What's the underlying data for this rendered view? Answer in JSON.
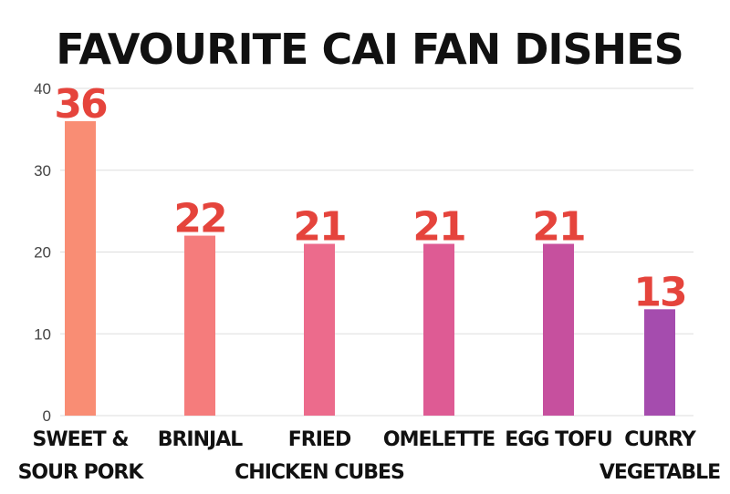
{
  "chart_data": {
    "type": "bar",
    "title": "FAVOURITE CAI FAN DISHES",
    "xlabel": "",
    "ylabel": "",
    "categories": [
      [
        "SWEET &",
        "SOUR PORK"
      ],
      [
        "BRINJAL"
      ],
      [
        "FRIED",
        "CHICKEN CUBES"
      ],
      [
        "OMELETTE"
      ],
      [
        "EGG TOFU"
      ],
      [
        "CURRY",
        "VEGETABLE"
      ]
    ],
    "values": [
      36,
      22,
      21,
      21,
      21,
      13
    ],
    "ylim": [
      0,
      40
    ],
    "yticks": [
      0,
      10,
      20,
      30,
      40
    ],
    "grid": true,
    "bar_colors": [
      "#F98D74",
      "#F57C7C",
      "#EC6B8C",
      "#DE5B94",
      "#C6509E",
      "#A54CAE"
    ],
    "value_label_color": "#E5443C"
  }
}
